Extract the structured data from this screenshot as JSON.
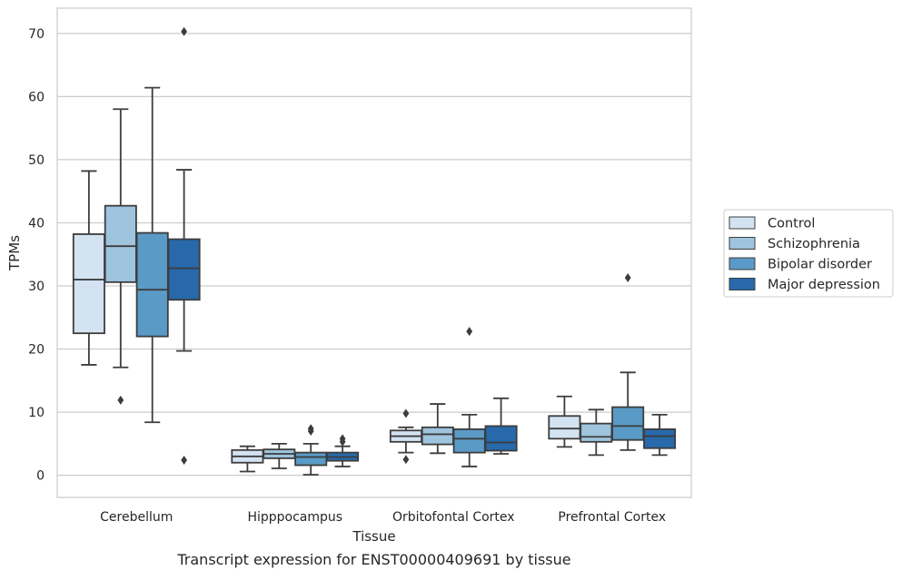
{
  "caption": "Transcript expression for ENST00000409691 by tissue",
  "chart_data": {
    "type": "box",
    "title": "",
    "xlabel": "Tissue",
    "ylabel": "TPMs",
    "ylim": [
      -3.5,
      74
    ],
    "yticks": [
      0,
      10,
      20,
      30,
      40,
      50,
      60,
      70
    ],
    "grid": "horizontal",
    "legend_position": "right",
    "categories": [
      "Cerebellum",
      "Hipppocampus",
      "Orbitofontal Cortex",
      "Prefrontal Cortex"
    ],
    "series": [
      {
        "name": "Control",
        "color": "#d4e3f2",
        "boxes": [
          {
            "whisker_low": 17.5,
            "q1": 22.5,
            "median": 31.0,
            "q3": 38.2,
            "whisker_high": 48.2,
            "outliers": []
          },
          {
            "whisker_low": 0.6,
            "q1": 2.0,
            "median": 3.0,
            "q3": 4.0,
            "whisker_high": 4.6,
            "outliers": []
          },
          {
            "whisker_low": 3.6,
            "q1": 5.3,
            "median": 6.2,
            "q3": 7.1,
            "whisker_high": 7.6,
            "outliers": [
              9.8,
              2.5
            ]
          },
          {
            "whisker_low": 4.5,
            "q1": 5.8,
            "median": 7.4,
            "q3": 9.4,
            "whisker_high": 12.5,
            "outliers": []
          }
        ]
      },
      {
        "name": "Schizophrenia",
        "color": "#9ec4de",
        "boxes": [
          {
            "whisker_low": 17.1,
            "q1": 30.6,
            "median": 36.3,
            "q3": 42.7,
            "whisker_high": 58.0,
            "outliers": [
              11.9
            ]
          },
          {
            "whisker_low": 1.1,
            "q1": 2.7,
            "median": 3.4,
            "q3": 4.1,
            "whisker_high": 5.0,
            "outliers": []
          },
          {
            "whisker_low": 3.5,
            "q1": 4.9,
            "median": 6.5,
            "q3": 7.6,
            "whisker_high": 11.3,
            "outliers": []
          },
          {
            "whisker_low": 3.2,
            "q1": 5.3,
            "median": 6.1,
            "q3": 8.2,
            "whisker_high": 10.4,
            "outliers": []
          }
        ]
      },
      {
        "name": "Bipolar disorder",
        "color": "#5a9ac6",
        "boxes": [
          {
            "whisker_low": 8.4,
            "q1": 22.0,
            "median": 29.4,
            "q3": 38.4,
            "whisker_high": 61.4,
            "outliers": []
          },
          {
            "whisker_low": 0.1,
            "q1": 1.6,
            "median": 2.9,
            "q3": 3.6,
            "whisker_high": 5.0,
            "outliers": [
              7.0,
              7.4
            ]
          },
          {
            "whisker_low": 1.4,
            "q1": 3.6,
            "median": 5.8,
            "q3": 7.3,
            "whisker_high": 9.6,
            "outliers": [
              22.8
            ]
          },
          {
            "whisker_low": 4.0,
            "q1": 5.6,
            "median": 7.8,
            "q3": 10.8,
            "whisker_high": 16.3,
            "outliers": [
              31.3
            ]
          }
        ]
      },
      {
        "name": "Major depression",
        "color": "#2769ab",
        "boxes": [
          {
            "whisker_low": 19.7,
            "q1": 27.8,
            "median": 32.8,
            "q3": 37.4,
            "whisker_high": 48.4,
            "outliers": [
              70.3,
              2.4
            ]
          },
          {
            "whisker_low": 1.4,
            "q1": 2.3,
            "median": 2.9,
            "q3": 3.6,
            "whisker_high": 4.6,
            "outliers": [
              5.3,
              5.8
            ]
          },
          {
            "whisker_low": 3.4,
            "q1": 3.9,
            "median": 5.2,
            "q3": 7.8,
            "whisker_high": 12.2,
            "outliers": []
          },
          {
            "whisker_low": 3.2,
            "q1": 4.3,
            "median": 6.2,
            "q3": 7.3,
            "whisker_high": 9.6,
            "outliers": []
          }
        ]
      }
    ]
  }
}
